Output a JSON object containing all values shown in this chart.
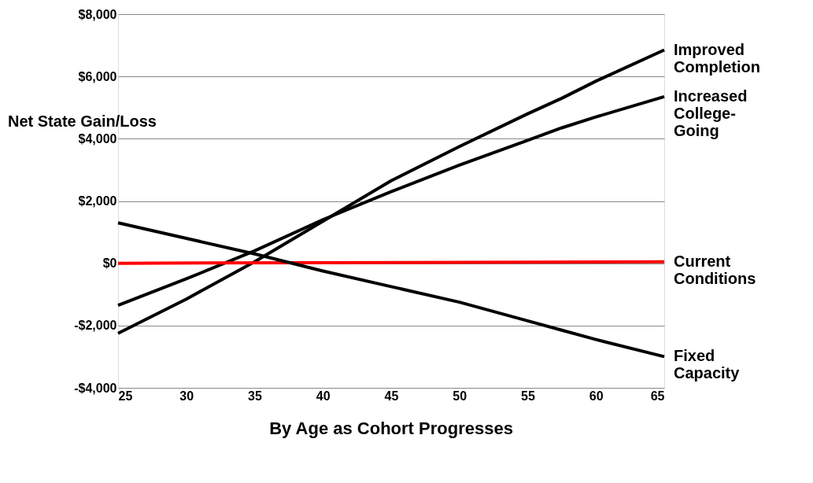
{
  "chart_data": {
    "type": "line",
    "xlabel": "By Age as Cohort Progresses",
    "ylabel": "Net State Gain/Loss",
    "x": [
      25,
      30,
      35,
      40,
      45,
      50,
      55,
      57.5,
      60,
      65
    ],
    "series": [
      {
        "name": "Improved Completion",
        "color": "#000000",
        "values": [
          -2250,
          -1150,
          50,
          1350,
          2650,
          3750,
          4800,
          5300,
          5850,
          6850
        ]
      },
      {
        "name": "Increased College-Going",
        "color": "#000000",
        "values": [
          -1350,
          -500,
          400,
          1400,
          2300,
          3150,
          3950,
          4350,
          4700,
          5350
        ]
      },
      {
        "name": "Current Conditions",
        "color": "#ff0000",
        "x": [
          25,
          65
        ],
        "values": [
          0,
          50
        ]
      },
      {
        "name": "Fixed Capacity",
        "color": "#000000",
        "values": [
          1300,
          800,
          300,
          -250,
          -750,
          -1250,
          -1850,
          -2150,
          -2450,
          -3000
        ]
      }
    ],
    "xlim": [
      25,
      65
    ],
    "xticks": [
      25,
      30,
      35,
      40,
      45,
      50,
      55,
      60,
      65
    ],
    "ylim": [
      -4000,
      8000
    ],
    "yticks": [
      {
        "value": -4000,
        "label": "-$4,000"
      },
      {
        "value": -2000,
        "label": "-$2,000"
      },
      {
        "value": 0,
        "label": "$0"
      },
      {
        "value": 2000,
        "label": "$2,000"
      },
      {
        "value": 4000,
        "label": "$4,000"
      },
      {
        "value": 6000,
        "label": "$6,000"
      },
      {
        "value": 8000,
        "label": "$8,000"
      }
    ],
    "grid": "y",
    "marker": "none",
    "line_style": "solid"
  }
}
